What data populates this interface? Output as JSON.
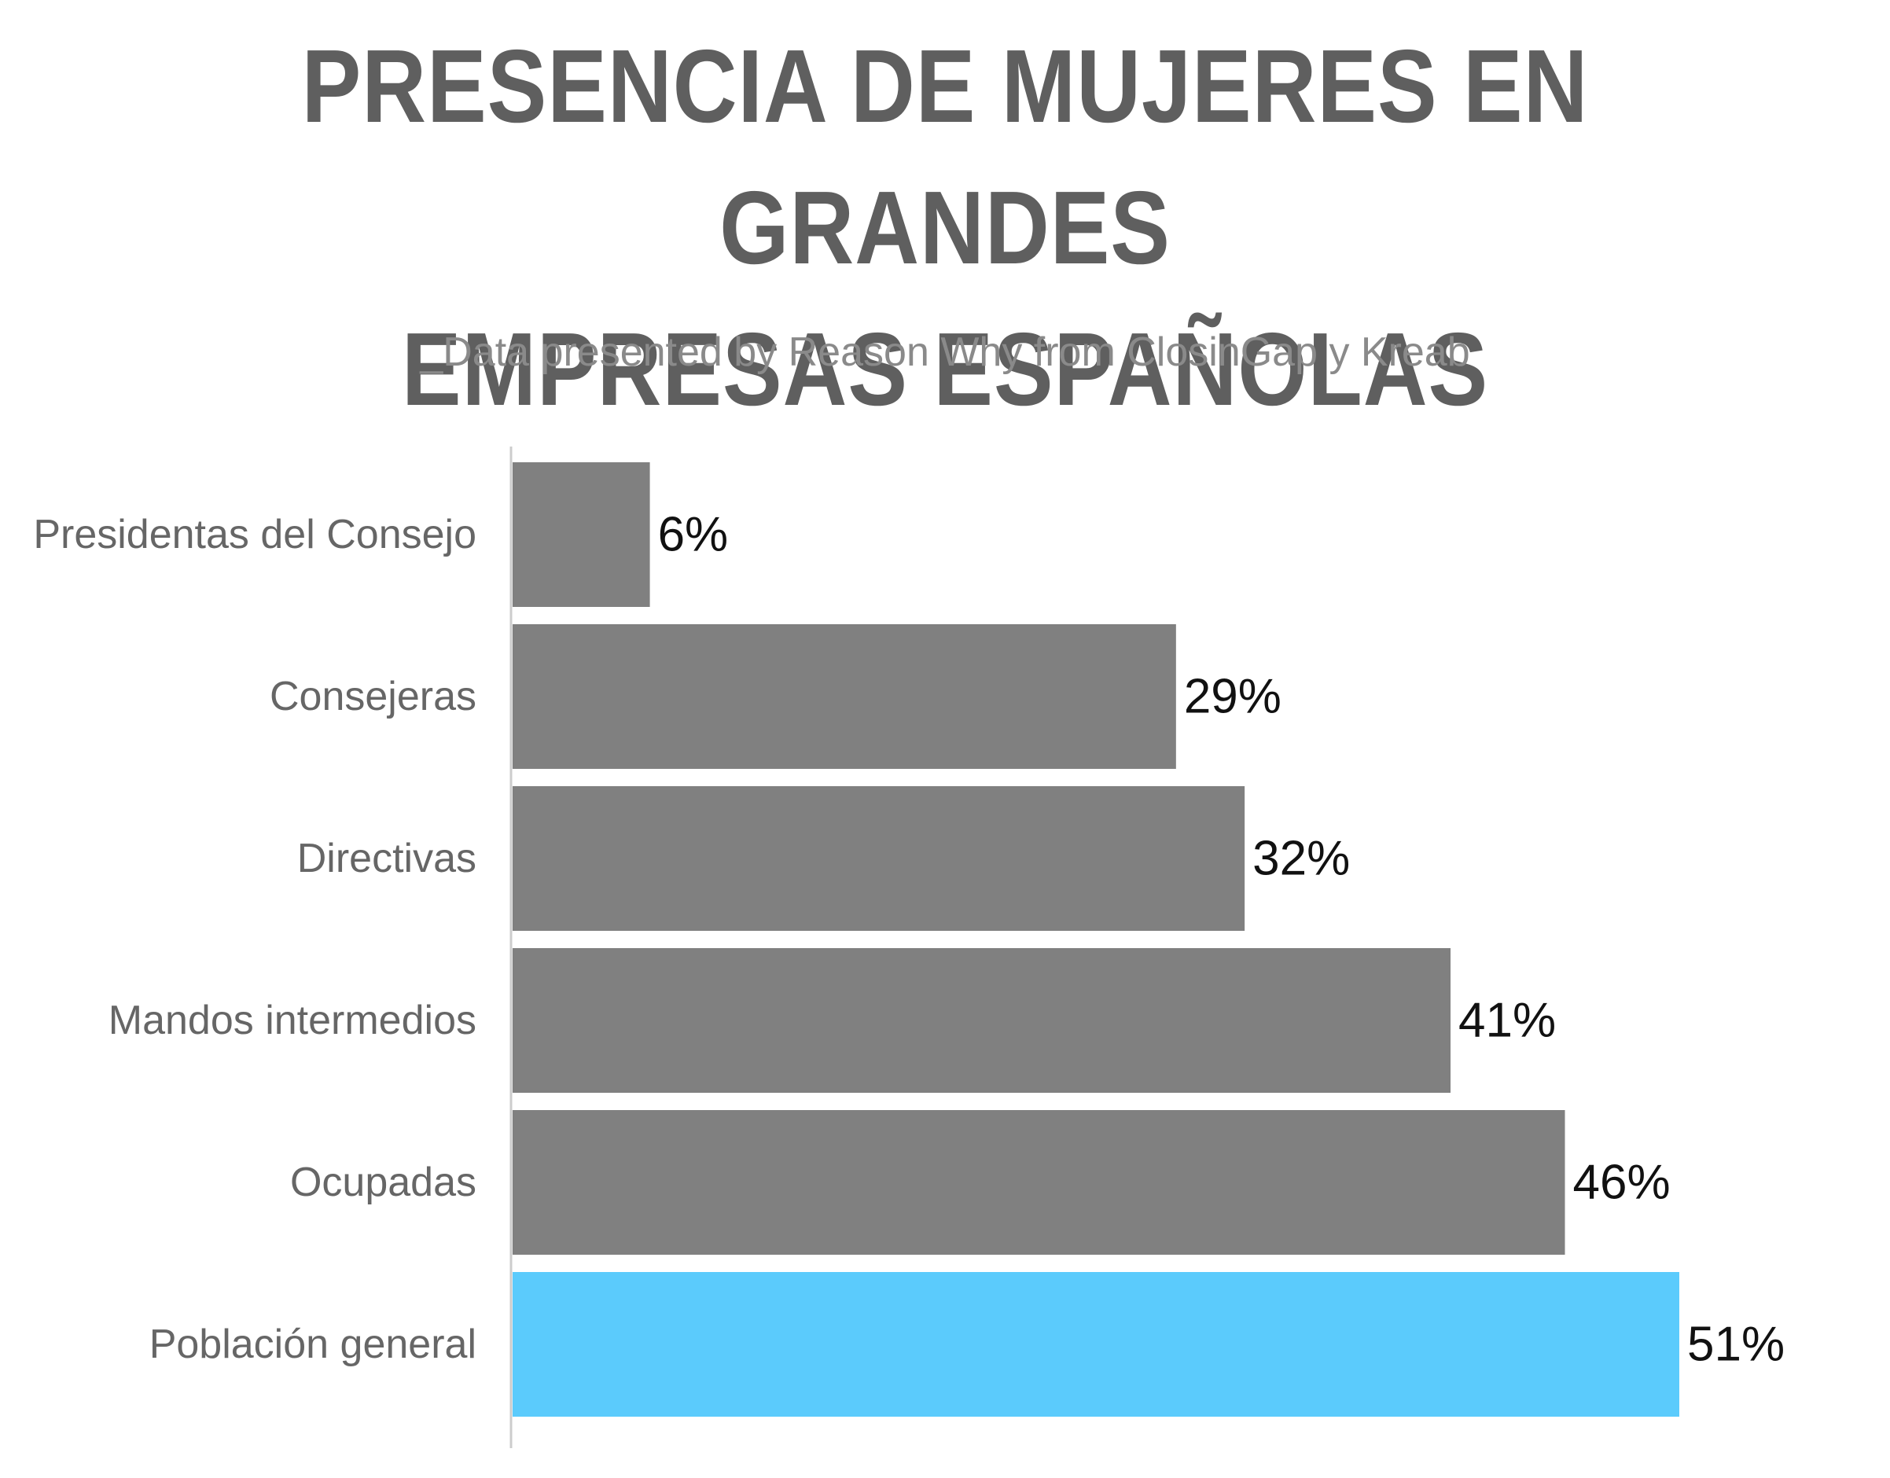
{
  "chart_data": {
    "type": "bar",
    "orientation": "horizontal",
    "title_lines": [
      "PRESENCIA DE MUJERES EN GRANDES",
      "EMPRESAS ESPAÑOLAS"
    ],
    "subtitle": "_Data presented by Reason Why from ClosinGap y Kreab",
    "categories": [
      "Presidentas del Consejo",
      "Consejeras",
      "Directivas",
      "Mandos intermedios",
      "Ocupadas",
      "Población general"
    ],
    "values": [
      6,
      29,
      32,
      41,
      46,
      51
    ],
    "value_labels": [
      "6%",
      "29%",
      "32%",
      "41%",
      "46%",
      "51%"
    ],
    "bar_colors": [
      "#808080",
      "#808080",
      "#808080",
      "#808080",
      "#808080",
      "#5bcbfc"
    ],
    "xlim": [
      0,
      51
    ],
    "grid": false,
    "legend": "none"
  }
}
